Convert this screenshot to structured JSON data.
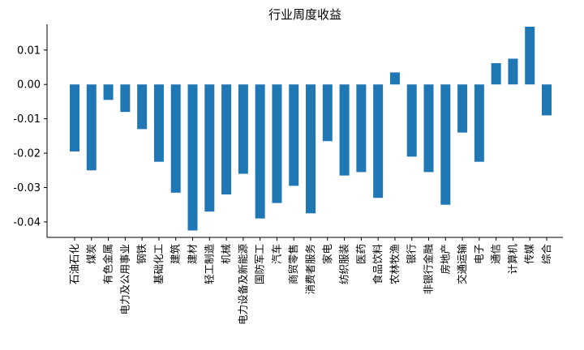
{
  "chart_data": {
    "type": "bar",
    "title": "行业周度收益",
    "xlabel": "",
    "ylabel": "",
    "ylim": [
      -0.0445,
      0.0175
    ],
    "yticks": [
      0.01,
      0.0,
      -0.01,
      -0.02,
      -0.03,
      -0.04
    ],
    "ytick_labels": [
      "0.01",
      "0.00",
      "-0.01",
      "-0.02",
      "-0.03",
      "-0.04"
    ],
    "bar_color": "#1f77b4",
    "grid": false,
    "categories": [
      "石油石化",
      "煤炭",
      "有色金属",
      "电力及公用事业",
      "钢铁",
      "基础化工",
      "建筑",
      "建材",
      "轻工制造",
      "机械",
      "电力设备及新能源",
      "国防军工",
      "汽车",
      "商贸零售",
      "消费者服务",
      "家电",
      "纺织服装",
      "医药",
      "食品饮料",
      "农林牧渔",
      "银行",
      "非银行金融",
      "房地产",
      "交通运输",
      "电子",
      "通信",
      "计算机",
      "传媒",
      "综合"
    ],
    "values": [
      -0.0195,
      -0.025,
      -0.0045,
      -0.008,
      -0.013,
      -0.0225,
      -0.0315,
      -0.0425,
      -0.037,
      -0.032,
      -0.026,
      -0.039,
      -0.0345,
      -0.0295,
      -0.0375,
      -0.0165,
      -0.0265,
      -0.0255,
      -0.033,
      0.0035,
      -0.021,
      -0.0255,
      -0.035,
      -0.014,
      -0.0225,
      0.0062,
      0.0075,
      0.0168,
      -0.009
    ]
  }
}
